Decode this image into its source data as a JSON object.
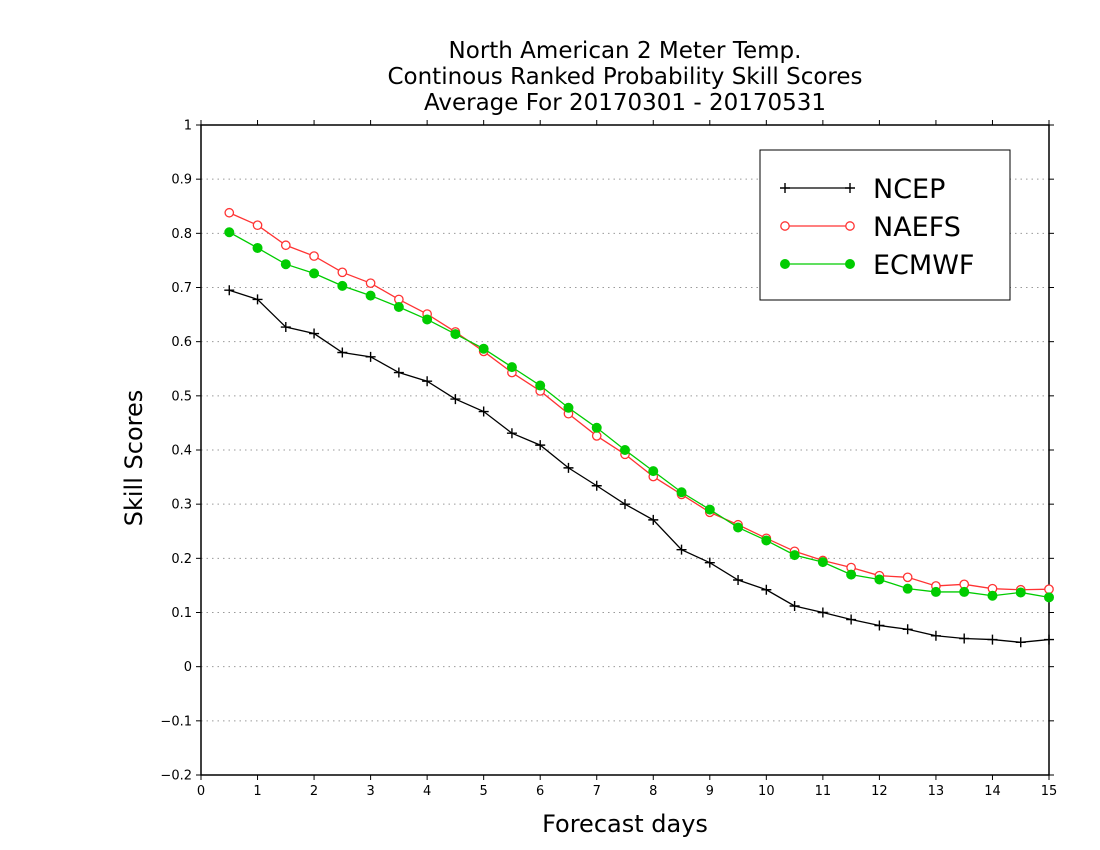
{
  "chart_data": {
    "type": "line",
    "title_lines": [
      "North American 2 Meter Temp.",
      "Continous Ranked Probability Skill Scores",
      "Average For 20170301 - 20170531"
    ],
    "xlabel": "Forecast days",
    "ylabel": "Skill Scores",
    "xlim": [
      0,
      15
    ],
    "ylim": [
      -0.2,
      1
    ],
    "xticks": [
      0,
      1,
      2,
      3,
      4,
      5,
      6,
      7,
      8,
      9,
      10,
      11,
      12,
      13,
      14,
      15
    ],
    "xtick_labels": [
      "0",
      "1",
      "2",
      "3",
      "4",
      "5",
      "6",
      "7",
      "8",
      "9",
      "10",
      "11",
      "12",
      "13",
      "14",
      "15"
    ],
    "yticks": [
      -0.2,
      -0.1,
      0,
      0.1,
      0.2,
      0.3,
      0.4,
      0.5,
      0.6,
      0.7,
      0.8,
      0.9,
      1
    ],
    "ytick_labels": [
      "−0.2",
      "−0.1",
      "0",
      "0.1",
      "0.2",
      "0.3",
      "0.4",
      "0.5",
      "0.6",
      "0.7",
      "0.8",
      "0.9",
      "1"
    ],
    "grid": "horizontal dotted",
    "legend_position": "top-right",
    "x": [
      0.5,
      1,
      1.5,
      2,
      2.5,
      3,
      3.5,
      4,
      4.5,
      5,
      5.5,
      6,
      6.5,
      7,
      7.5,
      8,
      8.5,
      9,
      9.5,
      10,
      10.5,
      11,
      11.5,
      12,
      12.5,
      13,
      13.5,
      14,
      14.5,
      15
    ],
    "series": [
      {
        "name": "NCEP",
        "color": "#000000",
        "marker": "plus",
        "values": [
          0.695,
          0.678,
          0.627,
          0.615,
          0.58,
          0.572,
          0.543,
          0.527,
          0.494,
          0.471,
          0.431,
          0.409,
          0.367,
          0.334,
          0.3,
          0.271,
          0.216,
          0.192,
          0.16,
          0.142,
          0.112,
          0.1,
          0.087,
          0.076,
          0.069,
          0.057,
          0.052,
          0.05,
          0.045,
          0.05
        ]
      },
      {
        "name": "NAEFS",
        "color": "#ff3333",
        "marker": "open-circle",
        "values": [
          0.838,
          0.815,
          0.778,
          0.758,
          0.728,
          0.708,
          0.678,
          0.651,
          0.618,
          0.582,
          0.543,
          0.509,
          0.467,
          0.426,
          0.392,
          0.351,
          0.318,
          0.285,
          0.262,
          0.237,
          0.213,
          0.196,
          0.183,
          0.168,
          0.165,
          0.149,
          0.152,
          0.144,
          0.142,
          0.143
        ]
      },
      {
        "name": "ECMWF",
        "color": "#00cc00",
        "marker": "filled-circle",
        "values": [
          0.802,
          0.773,
          0.743,
          0.726,
          0.703,
          0.685,
          0.664,
          0.641,
          0.614,
          0.587,
          0.553,
          0.519,
          0.478,
          0.441,
          0.4,
          0.361,
          0.322,
          0.29,
          0.257,
          0.233,
          0.206,
          0.193,
          0.17,
          0.161,
          0.144,
          0.138,
          0.138,
          0.131,
          0.137,
          0.128
        ]
      }
    ]
  }
}
